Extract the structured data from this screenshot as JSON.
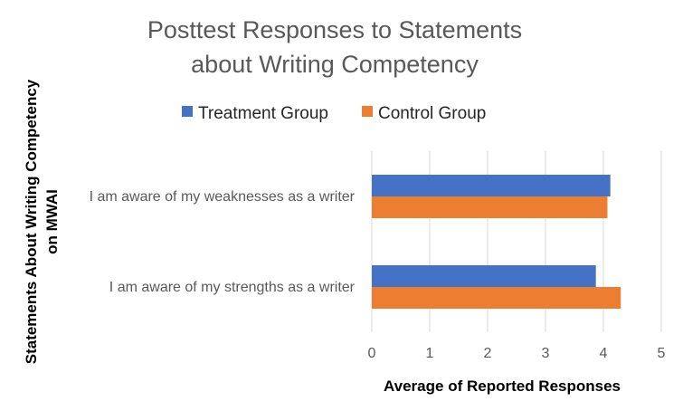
{
  "chart_data": {
    "type": "bar",
    "orientation": "horizontal",
    "title_lines": [
      "Posttest Responses to Statements",
      "about Writing Competency"
    ],
    "xlabel": "Average of Reported Responses",
    "ylabel_lines": [
      "Statements About Writing Competency",
      "on MWAI"
    ],
    "categories": [
      "I am aware of my weaknesses as a writer",
      "I am aware of my strengths as a writer"
    ],
    "series": [
      {
        "name": "Treatment Group",
        "color": "#4472C4",
        "values": [
          4.12,
          3.87
        ]
      },
      {
        "name": "Control Group",
        "color": "#ED7D31",
        "values": [
          4.07,
          4.3
        ]
      }
    ],
    "xlim": [
      0,
      5
    ],
    "xticks": [
      "0",
      "1",
      "2",
      "3",
      "4",
      "5"
    ],
    "grid": true,
    "legend_position": "top"
  }
}
